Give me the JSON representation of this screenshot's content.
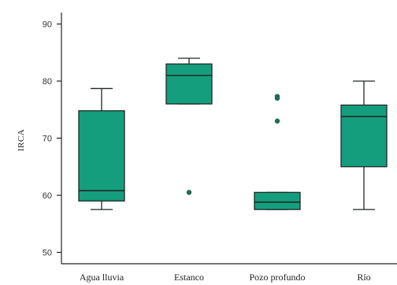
{
  "chart_data": {
    "type": "boxplot",
    "title": "",
    "xlabel": "",
    "ylabel": "IRCA",
    "ylim": [
      48,
      92
    ],
    "yticks": [
      50,
      60,
      70,
      80,
      90
    ],
    "grid": false,
    "legend": "none",
    "color": "#149e7e",
    "edge_color": "#1f2a24",
    "outlier_color": "#1f6b52",
    "categories": [
      "Agua lluvia",
      "Estanco",
      "Pozo profundo",
      "Río"
    ],
    "boxes": [
      {
        "category": "Agua lluvia",
        "whisker_low": 57.5,
        "q1": 59.0,
        "median": 60.8,
        "q3": 74.8,
        "whisker_high": 78.7,
        "outliers": []
      },
      {
        "category": "Estanco",
        "whisker_low": 76.0,
        "q1": 76.0,
        "median": 81.0,
        "q3": 83.0,
        "whisker_high": 84.0,
        "outliers": [
          60.5
        ]
      },
      {
        "category": "Pozo profundo",
        "whisker_low": 57.5,
        "q1": 57.5,
        "median": 58.8,
        "q3": 60.5,
        "whisker_high": 60.5,
        "outliers": [
          73.0,
          77.0,
          77.3
        ]
      },
      {
        "category": "Río",
        "whisker_low": 57.5,
        "q1": 65.0,
        "median": 73.8,
        "q3": 75.8,
        "whisker_high": 80.0,
        "outliers": []
      }
    ]
  }
}
